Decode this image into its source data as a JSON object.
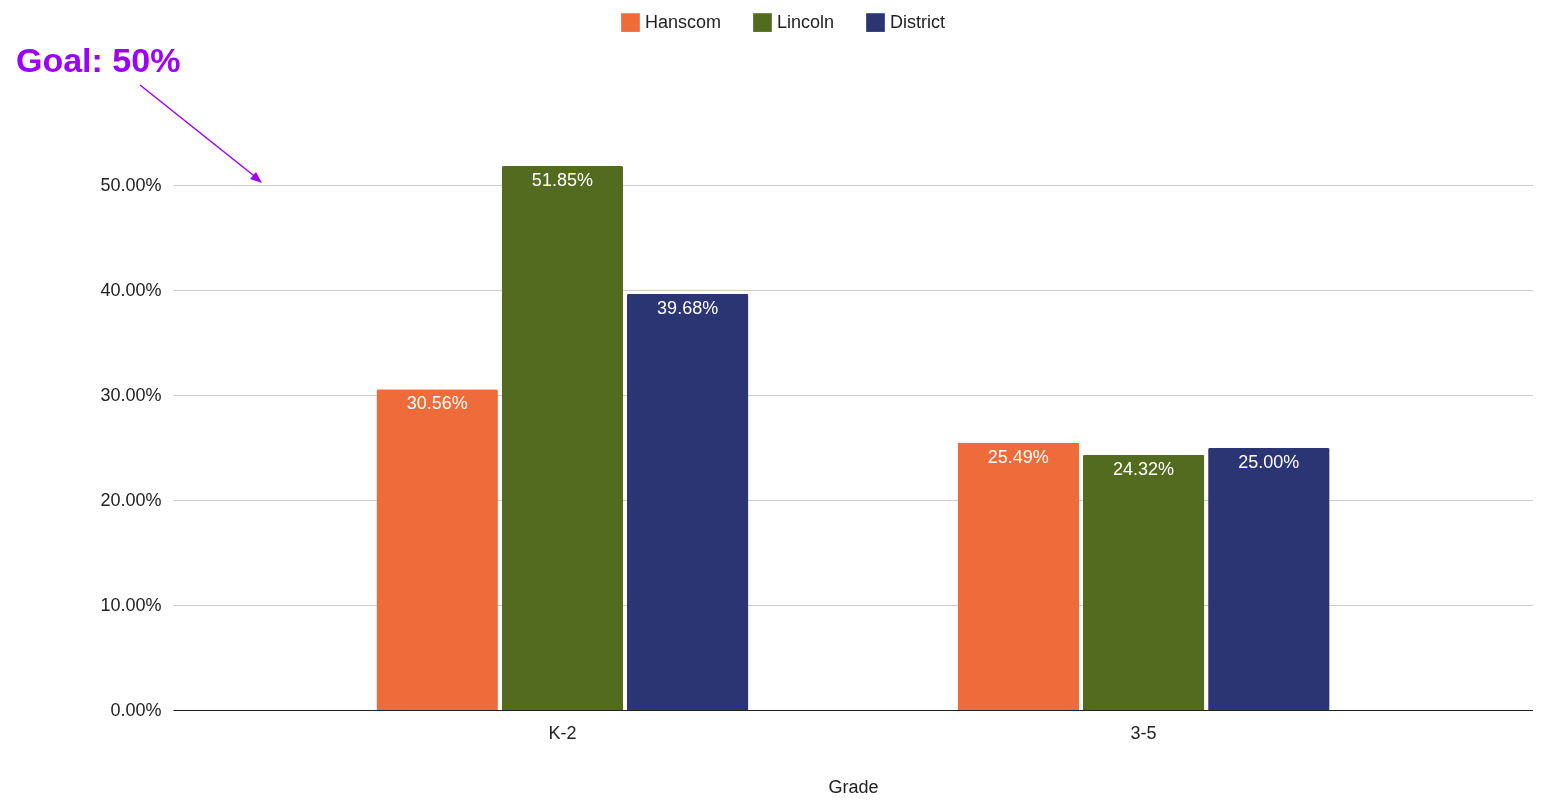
{
  "chart_data": {
    "type": "bar",
    "xlabel": "Grade",
    "categories": [
      "K-2",
      "3-5"
    ],
    "series": [
      {
        "name": "Hanscom",
        "color": "#f06b3a",
        "values": [
          30.56,
          25.49
        ],
        "value_labels": [
          "30.56%",
          "25.49%"
        ]
      },
      {
        "name": "Lincoln",
        "color": "#526b1e",
        "values": [
          51.85,
          24.32
        ],
        "value_labels": [
          "51.85%",
          "24.32%"
        ]
      },
      {
        "name": "District",
        "color": "#2c3573",
        "values": [
          39.68,
          25.0
        ],
        "value_labels": [
          "39.68%",
          "25.00%"
        ]
      }
    ],
    "yticks": [
      {
        "value": 0,
        "label": "0.00%"
      },
      {
        "value": 10,
        "label": "10.00%"
      },
      {
        "value": 20,
        "label": "20.00%"
      },
      {
        "value": 30,
        "label": "30.00%"
      },
      {
        "value": 40,
        "label": "40.00%"
      },
      {
        "value": 50,
        "label": "50.00%"
      }
    ],
    "ylim": [
      0,
      51.85
    ],
    "grid": "y",
    "legend": "top",
    "annotations": [
      "Goal: 50%"
    ]
  }
}
